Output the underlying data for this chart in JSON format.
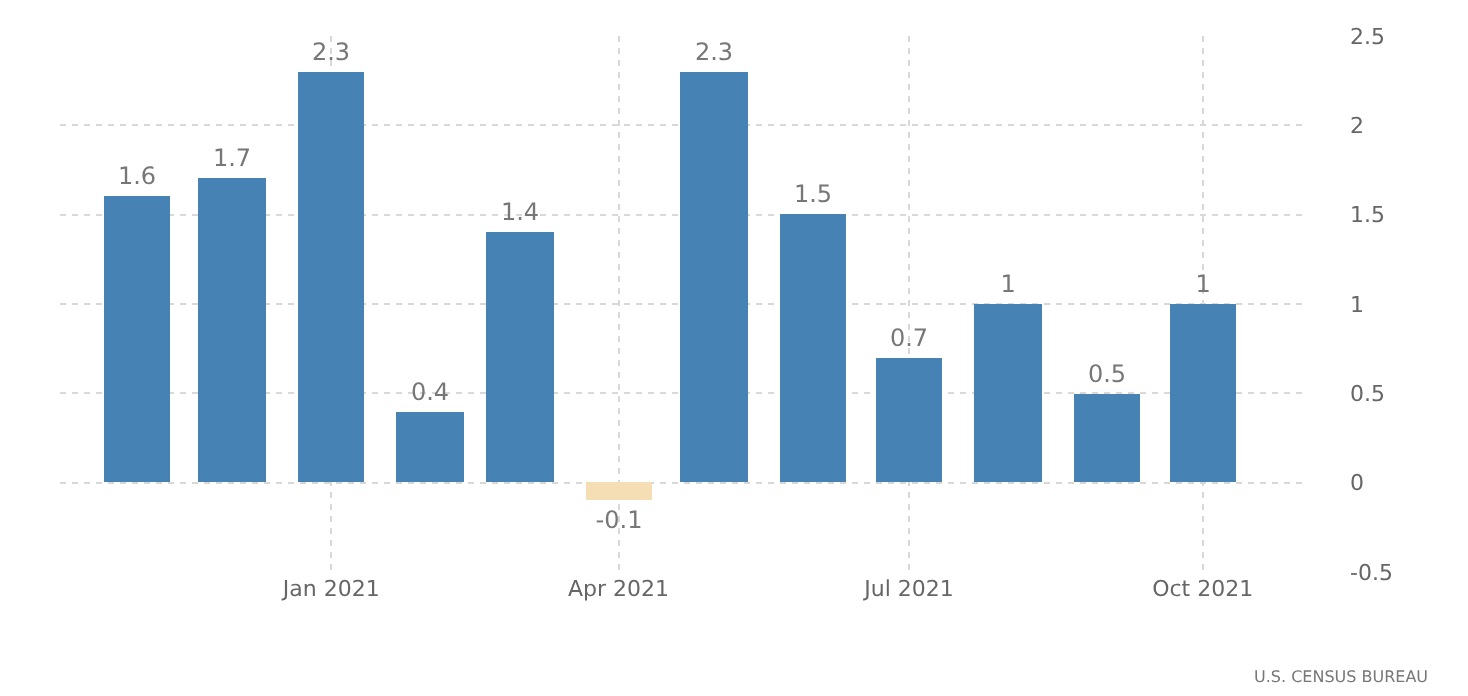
{
  "chart_data": {
    "type": "bar",
    "x": [
      "2020-11",
      "2020-12",
      "2021-01",
      "2021-02",
      "2021-03",
      "2021-04",
      "2021-05",
      "2021-06",
      "2021-07",
      "2021-08",
      "2021-09",
      "2021-10"
    ],
    "values": [
      1.6,
      1.7,
      2.3,
      0.4,
      1.4,
      -0.1,
      2.3,
      1.5,
      0.7,
      1,
      0.5,
      1
    ],
    "colors": [
      "#4682b4",
      "#4682b4",
      "#4682b4",
      "#4682b4",
      "#4682b4",
      "#f5deb3",
      "#4682b4",
      "#4682b4",
      "#4682b4",
      "#4682b4",
      "#4682b4",
      "#4682b4"
    ],
    "data_labels": true,
    "xlim": [
      "2020-10-08",
      "2021-11-03"
    ],
    "xticks": [
      {
        "value": "2021-01",
        "label": "Jan 2021"
      },
      {
        "value": "2021-04",
        "label": "Apr 2021"
      },
      {
        "value": "2021-07",
        "label": "Jul 2021"
      },
      {
        "value": "2021-10",
        "label": "Oct 2021"
      }
    ],
    "ylim": [
      -0.5,
      2.5
    ],
    "yticks": [
      -0.5,
      0,
      0.5,
      1,
      1.5,
      2,
      2.5
    ],
    "grid": true,
    "legend": false,
    "annotations": [
      "U.S. CENSUS BUREAU"
    ]
  }
}
